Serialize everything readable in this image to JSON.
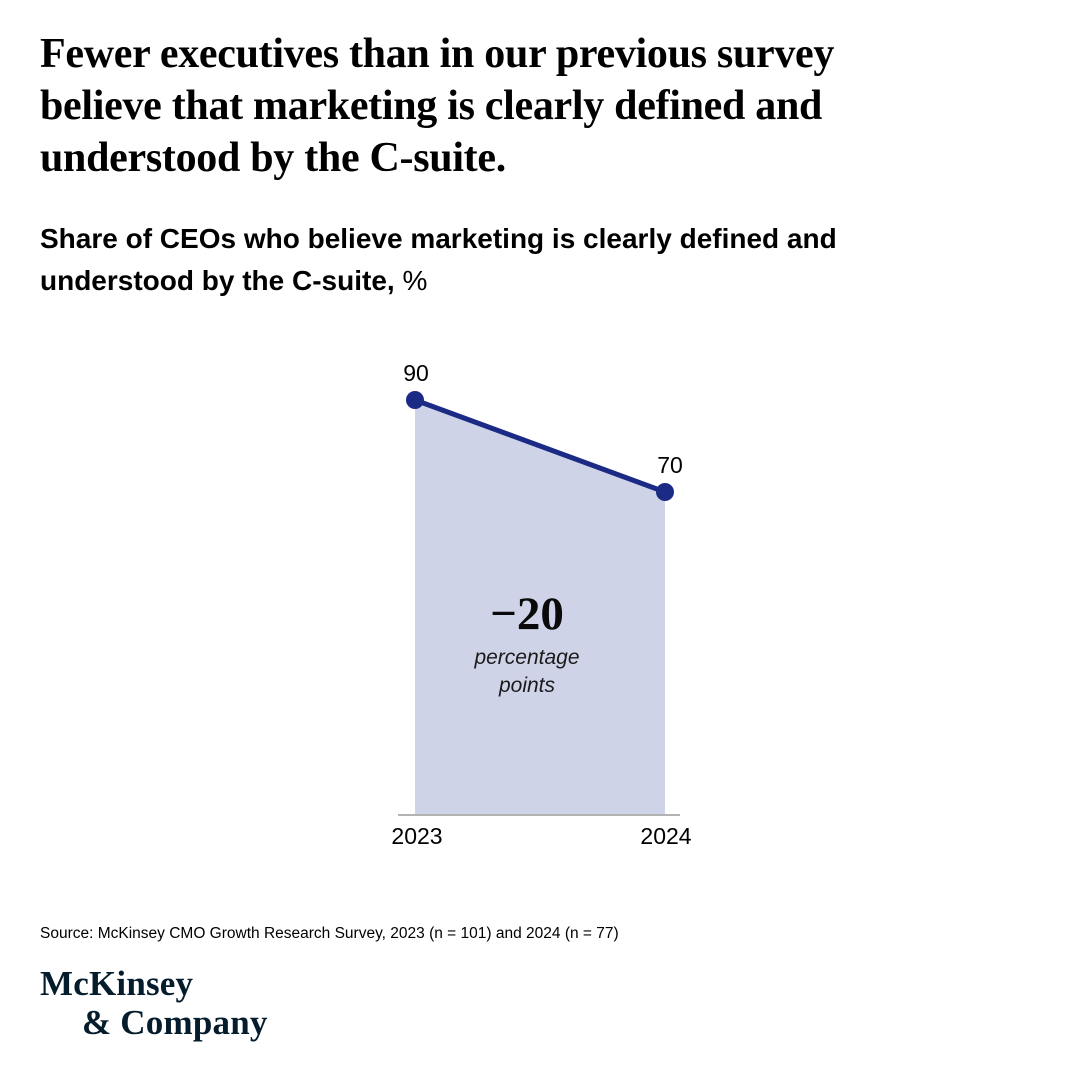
{
  "header": {
    "title_lines": [
      "Fewer executives than in our previous survey",
      "believe that marketing is clearly defined and",
      "understood by the C-suite."
    ],
    "subtitle_lines": [
      "Share of CEOs who believe marketing is clearly defined and",
      "understood by the C-suite,"
    ],
    "subtitle_unit": "%"
  },
  "chart_data": {
    "type": "area",
    "title": "Share of CEOs who believe marketing is clearly defined and understood by the C-suite, %",
    "categories": [
      "2023",
      "2024"
    ],
    "values": [
      90,
      70
    ],
    "point_labels": [
      "90",
      "70"
    ],
    "annotation": {
      "value": "−20",
      "lines": [
        "percentage",
        "points"
      ]
    },
    "xlabel": "",
    "ylabel": "",
    "ylim": [
      0,
      100
    ],
    "grid": false,
    "legend": false,
    "colors": {
      "line": "#1b2a85",
      "fill": "#ced3e8",
      "axis": "#b3b3b3"
    }
  },
  "footer": {
    "source": "Source: McKinsey CMO Growth Research Survey, 2023 (n = 101) and 2024 (n = 77)",
    "logo_lines": [
      "McKinsey",
      "& Company"
    ],
    "logo_color": "#051c2c"
  }
}
